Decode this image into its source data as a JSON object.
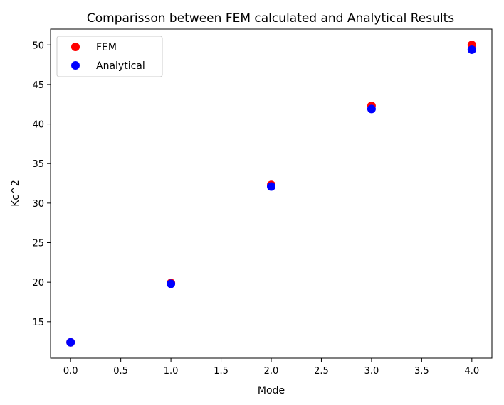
{
  "chart_data": {
    "type": "scatter",
    "title": "Comparisson between FEM calculated and Analytical Results",
    "xlabel": "Mode",
    "ylabel": "Kc^2",
    "xlim": [
      -0.2,
      4.2
    ],
    "ylim": [
      10.4,
      52.0
    ],
    "xticks": [
      "0.0",
      "0.5",
      "1.0",
      "1.5",
      "2.0",
      "2.5",
      "3.0",
      "3.5",
      "4.0"
    ],
    "yticks": [
      "15",
      "20",
      "25",
      "30",
      "35",
      "40",
      "45",
      "50"
    ],
    "grid": false,
    "legend_position": "top-left",
    "series": [
      {
        "name": "FEM",
        "color": "#ff0000",
        "x": [
          0,
          1,
          2,
          3,
          4
        ],
        "y": [
          12.4,
          19.9,
          32.3,
          42.3,
          50.0
        ]
      },
      {
        "name": "Analytical",
        "color": "#0000ff",
        "x": [
          0,
          1,
          2,
          3,
          4
        ],
        "y": [
          12.4,
          19.8,
          32.1,
          41.9,
          49.4
        ]
      }
    ]
  }
}
